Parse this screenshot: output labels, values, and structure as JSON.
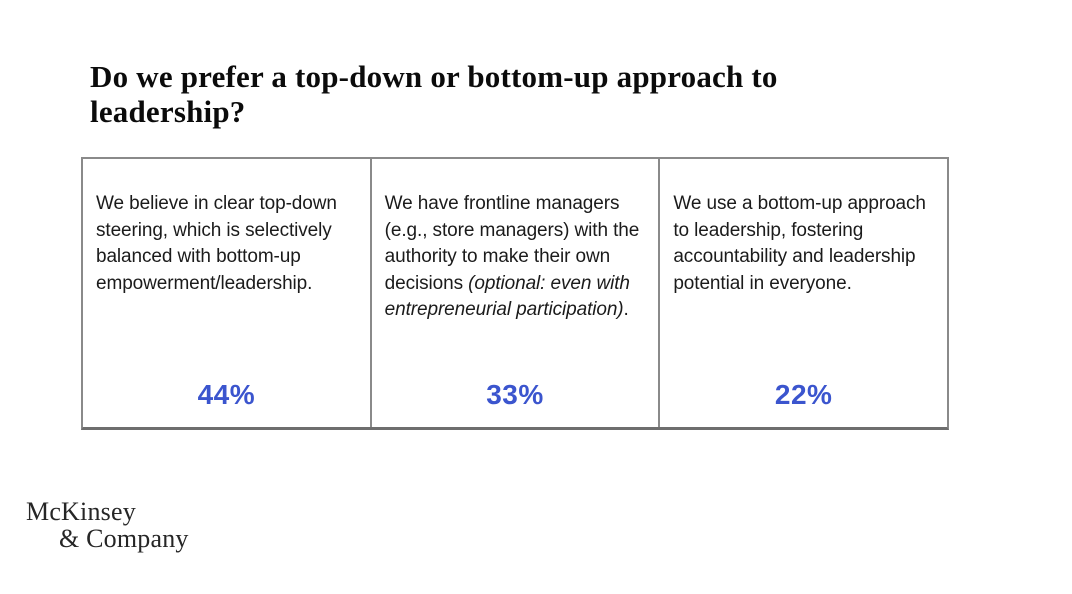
{
  "slide": {
    "title": "Do we prefer a top-down or bottom-up approach to leadership?",
    "footer_logo": {
      "line1": "McKinsey",
      "line2": "& Company"
    },
    "accent_color": "#3b55ce",
    "border_color": "#8a8a8a"
  },
  "table": {
    "columns": [
      {
        "segments": [
          {
            "text": "We believe in clear top-down steering, which is selectively balanced with bottom-up empowerment/leadership."
          }
        ],
        "value": "44%"
      },
      {
        "segments": [
          {
            "text": "We have frontline managers (e.g., store managers) with the authority to make their own decisions "
          },
          {
            "text": "(optional: even with entrepreneurial participation)",
            "italic": true
          },
          {
            "text": "."
          }
        ],
        "value": "33%"
      },
      {
        "segments": [
          {
            "text": "We use a bottom-up approach to leadership, fostering accountability and leadership potential in everyone."
          }
        ],
        "value": "22%"
      }
    ]
  },
  "chart_data": {
    "type": "table",
    "title": "Do we prefer a top-down or bottom-up approach to leadership?",
    "categories": [
      "We believe in clear top-down steering, which is selectively balanced with bottom-up empowerment/leadership.",
      "We have frontline managers (e.g., store managers) with the authority to make their own decisions (optional: even with entrepreneurial participation).",
      "We use a bottom-up approach to leadership, fostering accountability and leadership potential in everyone."
    ],
    "values": [
      44,
      33,
      22
    ],
    "unit": "%"
  }
}
